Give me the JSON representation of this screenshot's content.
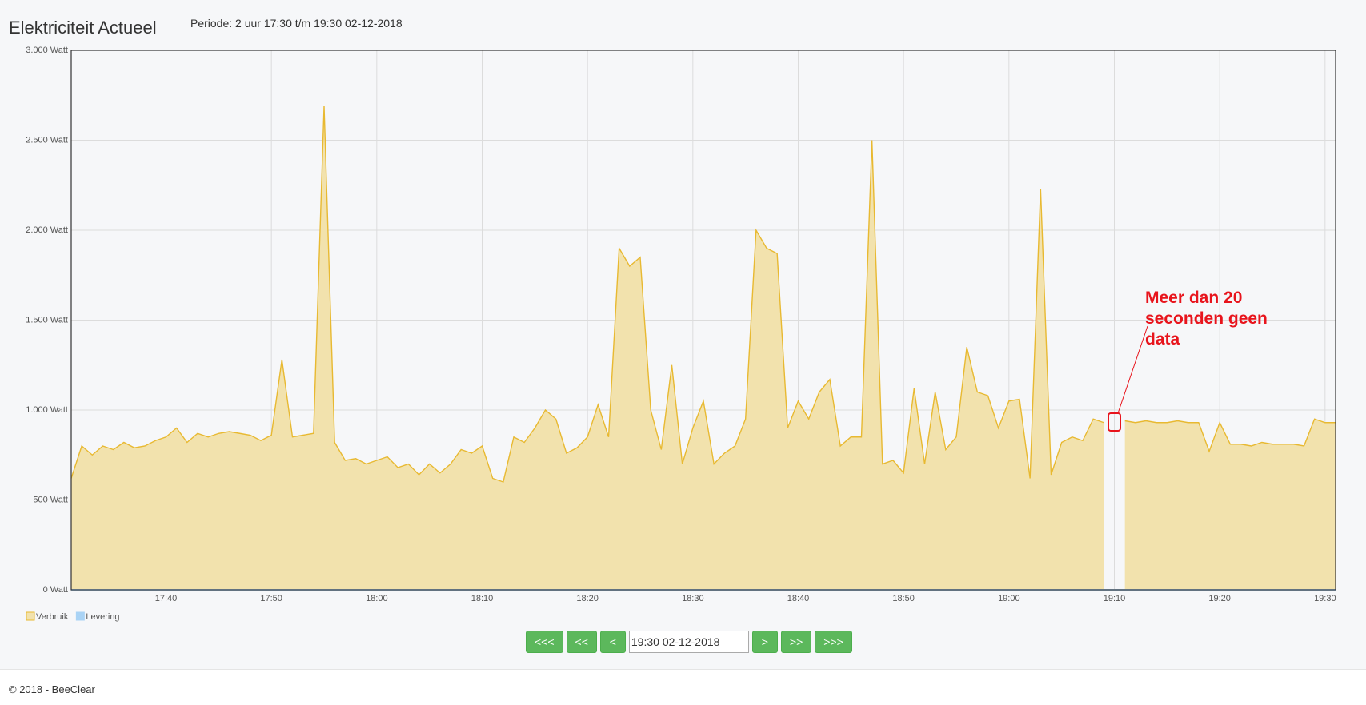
{
  "page": {
    "title": "Elektriciteit Actueel",
    "period": "Periode: 2 uur 17:30 t/m 19:30 02-12-2018",
    "buttons_left": [
      "<<<",
      "<<",
      "<"
    ],
    "date_input": "19:30 02-12-2018",
    "buttons_right": [
      ">",
      ">>",
      ">>>"
    ],
    "footer": "© 2018 - BeeClear"
  },
  "chart_data": {
    "type": "area",
    "x": [
      "17:31",
      "17:32",
      "17:33",
      "17:34",
      "17:35",
      "17:36",
      "17:37",
      "17:38",
      "17:39",
      "17:40",
      "17:41",
      "17:42",
      "17:43",
      "17:44",
      "17:45",
      "17:46",
      "17:47",
      "17:48",
      "17:49",
      "17:50",
      "17:51",
      "17:52",
      "17:53",
      "17:54",
      "17:55",
      "17:56",
      "17:57",
      "17:58",
      "17:59",
      "18:00",
      "18:01",
      "18:02",
      "18:03",
      "18:04",
      "18:05",
      "18:06",
      "18:07",
      "18:08",
      "18:09",
      "18:10",
      "18:11",
      "18:12",
      "18:13",
      "18:14",
      "18:15",
      "18:16",
      "18:17",
      "18:18",
      "18:19",
      "18:20",
      "18:21",
      "18:22",
      "18:23",
      "18:24",
      "18:25",
      "18:26",
      "18:27",
      "18:28",
      "18:29",
      "18:30",
      "18:31",
      "18:32",
      "18:33",
      "18:34",
      "18:35",
      "18:36",
      "18:37",
      "18:38",
      "18:39",
      "18:40",
      "18:41",
      "18:42",
      "18:43",
      "18:44",
      "18:45",
      "18:46",
      "18:47",
      "18:48",
      "18:49",
      "18:50",
      "18:51",
      "18:52",
      "18:53",
      "18:54",
      "18:55",
      "18:56",
      "18:57",
      "18:58",
      "18:59",
      "19:00",
      "19:01",
      "19:02",
      "19:03",
      "19:04",
      "19:05",
      "19:06",
      "19:07",
      "19:08",
      "19:09",
      "19:10",
      "19:11",
      "19:12",
      "19:13",
      "19:14",
      "19:15",
      "19:16",
      "19:17",
      "19:18",
      "19:19",
      "19:20",
      "19:21",
      "19:22",
      "19:23",
      "19:24",
      "19:25",
      "19:26",
      "19:27",
      "19:28",
      "19:29",
      "19:30",
      "19:31"
    ],
    "series": [
      {
        "name": "Verbruik",
        "color": "#e8b931",
        "fill": "#f2e2ad",
        "values": [
          620,
          800,
          750,
          800,
          780,
          820,
          790,
          800,
          830,
          850,
          900,
          820,
          870,
          850,
          870,
          880,
          870,
          860,
          830,
          860,
          1280,
          850,
          860,
          870,
          2690,
          820,
          720,
          730,
          700,
          720,
          740,
          680,
          700,
          640,
          700,
          650,
          700,
          780,
          760,
          800,
          620,
          600,
          850,
          820,
          900,
          1000,
          950,
          760,
          790,
          850,
          1030,
          850,
          1900,
          1800,
          1850,
          1000,
          780,
          1250,
          700,
          900,
          1050,
          700,
          760,
          800,
          950,
          2000,
          1900,
          1870,
          900,
          1050,
          950,
          1100,
          1170,
          800,
          850,
          850,
          2500,
          700,
          720,
          650,
          1120,
          700,
          1100,
          780,
          850,
          1350,
          1100,
          1080,
          900,
          1050,
          1060,
          620,
          2230,
          640,
          820,
          850,
          830,
          950,
          930,
          null,
          940,
          930,
          940,
          930,
          930,
          940,
          930,
          930,
          770,
          930,
          810,
          810,
          800,
          820,
          810,
          810,
          810,
          800,
          950,
          930,
          930
        ]
      },
      {
        "name": "Levering",
        "color": "#a9d3f5",
        "values": [
          0,
          0,
          0,
          0,
          0,
          0,
          0,
          0,
          0,
          0,
          0,
          0,
          0,
          0,
          0,
          0,
          0,
          0,
          0,
          0,
          0,
          0,
          0,
          0,
          0,
          0,
          0,
          0,
          0,
          0,
          0,
          0,
          0,
          0,
          0,
          0,
          0,
          0,
          0,
          0,
          0,
          0,
          0,
          0,
          0,
          0,
          0,
          0,
          0,
          0,
          0,
          0,
          0,
          0,
          0,
          0,
          0,
          0,
          0,
          0,
          0,
          0,
          0,
          0,
          0,
          0,
          0,
          0,
          0,
          0,
          0,
          0,
          0,
          0,
          0,
          0,
          0,
          0,
          0,
          0,
          0,
          0,
          0,
          0,
          0,
          0,
          0,
          0,
          0,
          0,
          0,
          0,
          0,
          0,
          0,
          0,
          0,
          0,
          0,
          0,
          0,
          0,
          0,
          0,
          0,
          0,
          0,
          0,
          0,
          0,
          0,
          0,
          0,
          0,
          0,
          0,
          0,
          0,
          0,
          0,
          0
        ]
      }
    ],
    "xlim": [
      "17:31",
      "19:31"
    ],
    "xticks": [
      "17:40",
      "17:50",
      "18:00",
      "18:10",
      "18:20",
      "18:30",
      "18:40",
      "18:50",
      "19:00",
      "19:10",
      "19:20",
      "19:30"
    ],
    "ylim": [
      0,
      3000
    ],
    "yticks": [
      {
        "value": 0,
        "label": "0 Watt"
      },
      {
        "value": 500,
        "label": "500 Watt"
      },
      {
        "value": 1000,
        "label": "1.000 Watt"
      },
      {
        "value": 1500,
        "label": "1.500 Watt"
      },
      {
        "value": 2000,
        "label": "2.000 Watt"
      },
      {
        "value": 2500,
        "label": "2.500 Watt"
      },
      {
        "value": 3000,
        "label": "3.000 Watt"
      }
    ],
    "grid": true,
    "annotation": "Meer dan 20 seconden geen data"
  }
}
